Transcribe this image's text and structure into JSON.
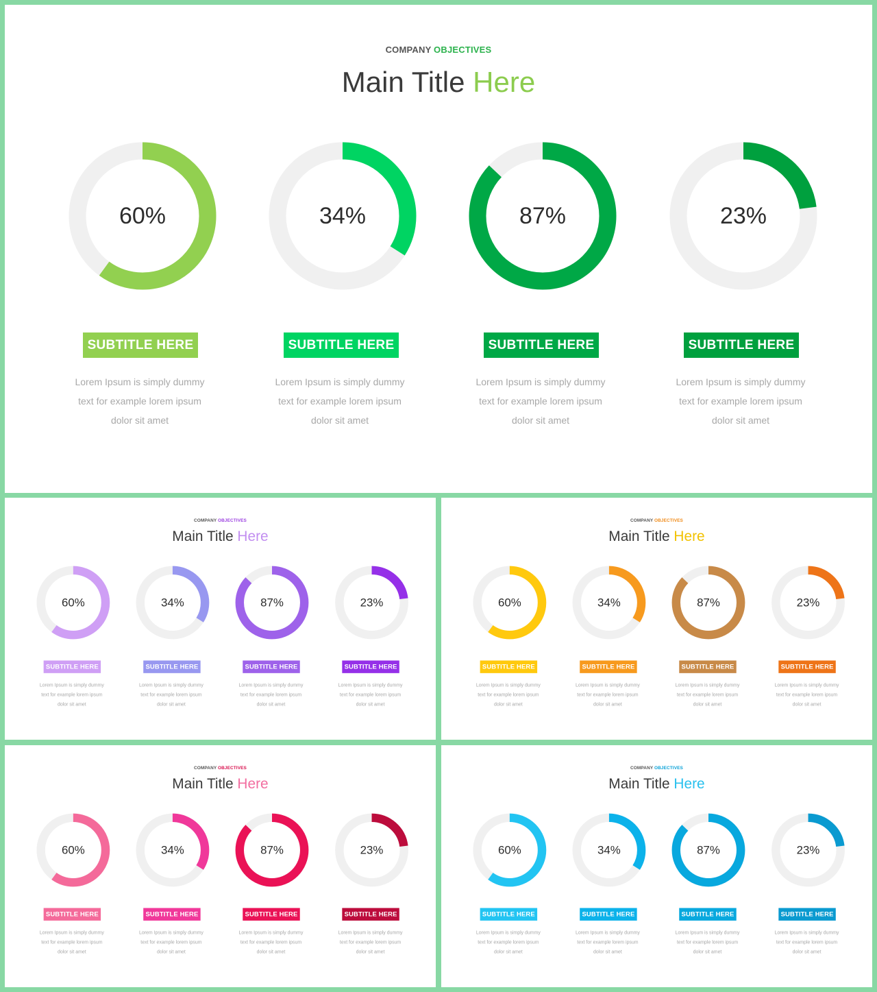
{
  "colors": {
    "background": "#88d8a4",
    "track": "#f0f0f0",
    "title_dark": "#3a3a3a",
    "kicker_dark": "#555555",
    "description": "#a8a8a8"
  },
  "slides": [
    {
      "kicker_main": "COMPANY",
      "kicker_accent": "OBJECTIVES",
      "kicker_accent_color": "#2bb24c",
      "title_main": "Main Title",
      "title_accent": "Here",
      "title_accent_color": "#8ccc4e",
      "items": [
        {
          "value": 60,
          "label": "60%",
          "subtitle": "SUBTITLE HERE",
          "color": "#92d050",
          "description_lines": [
            "Lorem Ipsum is simply dummy",
            "text for example lorem ipsum",
            "dolor sit amet"
          ]
        },
        {
          "value": 34,
          "label": "34%",
          "subtitle": "SUBTITLE HERE",
          "color": "#00d462",
          "description_lines": [
            "Lorem Ipsum is simply dummy",
            "text for example lorem ipsum",
            "dolor sit amet"
          ]
        },
        {
          "value": 87,
          "label": "87%",
          "subtitle": "SUBTITLE HERE",
          "color": "#00a846",
          "description_lines": [
            "Lorem Ipsum is simply dummy",
            "text for example lorem ipsum",
            "dolor sit amet"
          ]
        },
        {
          "value": 23,
          "label": "23%",
          "subtitle": "SUBTITLE HERE",
          "color": "#00a03e",
          "description_lines": [
            "Lorem Ipsum is simply dummy",
            "text for example lorem ipsum",
            "dolor sit amet"
          ]
        }
      ]
    },
    {
      "kicker_main": "COMPANY",
      "kicker_accent": "OBJECTIVES",
      "kicker_accent_color": "#9b3fe0",
      "title_main": "Main Title",
      "title_accent": "Here",
      "title_accent_color": "#c28ef0",
      "items": [
        {
          "value": 60,
          "label": "60%",
          "subtitle": "SUBTITLE HERE",
          "color": "#cf9ff5",
          "description_lines": [
            "Lorem Ipsum is simply dummy",
            "text for example lorem ipsum",
            "dolor sit amet"
          ]
        },
        {
          "value": 34,
          "label": "34%",
          "subtitle": "SUBTITLE HERE",
          "color": "#9898f0",
          "description_lines": [
            "Lorem Ipsum is simply dummy",
            "text for example lorem ipsum",
            "dolor sit amet"
          ]
        },
        {
          "value": 87,
          "label": "87%",
          "subtitle": "SUBTITLE HERE",
          "color": "#9e62ea",
          "description_lines": [
            "Lorem Ipsum is simply dummy",
            "text for example lorem ipsum",
            "dolor sit amet"
          ]
        },
        {
          "value": 23,
          "label": "23%",
          "subtitle": "SUBTITLE HERE",
          "color": "#9530e8",
          "description_lines": [
            "Lorem Ipsum is simply dummy",
            "text for example lorem ipsum",
            "dolor sit amet"
          ]
        }
      ]
    },
    {
      "kicker_main": "COMPANY",
      "kicker_accent": "OBJECTIVES",
      "kicker_accent_color": "#f08a18",
      "title_main": "Main Title",
      "title_accent": "Here",
      "title_accent_color": "#f2c200",
      "items": [
        {
          "value": 60,
          "label": "60%",
          "subtitle": "SUBTITLE HERE",
          "color": "#ffc90e",
          "description_lines": [
            "Lorem Ipsum is simply dummy",
            "text for example lorem ipsum",
            "dolor sit amet"
          ]
        },
        {
          "value": 34,
          "label": "34%",
          "subtitle": "SUBTITLE HERE",
          "color": "#f79a1e",
          "description_lines": [
            "Lorem Ipsum is simply dummy",
            "text for example lorem ipsum",
            "dolor sit amet"
          ]
        },
        {
          "value": 87,
          "label": "87%",
          "subtitle": "SUBTITLE HERE",
          "color": "#c88a48",
          "description_lines": [
            "Lorem Ipsum is simply dummy",
            "text for example lorem ipsum",
            "dolor sit amet"
          ]
        },
        {
          "value": 23,
          "label": "23%",
          "subtitle": "SUBTITLE HERE",
          "color": "#ee7418",
          "description_lines": [
            "Lorem Ipsum is simply dummy",
            "text for example lorem ipsum",
            "dolor sit amet"
          ]
        }
      ]
    },
    {
      "kicker_main": "COMPANY",
      "kicker_accent": "OBJECTIVES",
      "kicker_accent_color": "#d8114e",
      "title_main": "Main Title",
      "title_accent": "Here",
      "title_accent_color": "#f26ea0",
      "items": [
        {
          "value": 60,
          "label": "60%",
          "subtitle": "SUBTITLE HERE",
          "color": "#f46a9a",
          "description_lines": [
            "Lorem Ipsum is simply dummy",
            "text for example lorem ipsum",
            "dolor sit amet"
          ]
        },
        {
          "value": 34,
          "label": "34%",
          "subtitle": "SUBTITLE HERE",
          "color": "#f0389a",
          "description_lines": [
            "Lorem Ipsum is simply dummy",
            "text for example lorem ipsum",
            "dolor sit amet"
          ]
        },
        {
          "value": 87,
          "label": "87%",
          "subtitle": "SUBTITLE HERE",
          "color": "#ea1256",
          "description_lines": [
            "Lorem Ipsum is simply dummy",
            "text for example lorem ipsum",
            "dolor sit amet"
          ]
        },
        {
          "value": 23,
          "label": "23%",
          "subtitle": "SUBTITLE HERE",
          "color": "#bc0c3c",
          "description_lines": [
            "Lorem Ipsum is simply dummy",
            "text for example lorem ipsum",
            "dolor sit amet"
          ]
        }
      ]
    },
    {
      "kicker_main": "COMPANY",
      "kicker_accent": "OBJECTIVES",
      "kicker_accent_color": "#0aa2d8",
      "title_main": "Main Title",
      "title_accent": "Here",
      "title_accent_color": "#28c0ee",
      "items": [
        {
          "value": 60,
          "label": "60%",
          "subtitle": "SUBTITLE HERE",
          "color": "#22c4f2",
          "description_lines": [
            "Lorem Ipsum is simply dummy",
            "text for example lorem ipsum",
            "dolor sit amet"
          ]
        },
        {
          "value": 34,
          "label": "34%",
          "subtitle": "SUBTITLE HERE",
          "color": "#0cb2ea",
          "description_lines": [
            "Lorem Ipsum is simply dummy",
            "text for example lorem ipsum",
            "dolor sit amet"
          ]
        },
        {
          "value": 87,
          "label": "87%",
          "subtitle": "SUBTITLE HERE",
          "color": "#08a8de",
          "description_lines": [
            "Lorem Ipsum is simply dummy",
            "text for example lorem ipsum",
            "dolor sit amet"
          ]
        },
        {
          "value": 23,
          "label": "23%",
          "subtitle": "SUBTITLE HERE",
          "color": "#0a9ad0",
          "description_lines": [
            "Lorem Ipsum is simply dummy",
            "text for example lorem ipsum",
            "dolor sit amet"
          ]
        }
      ]
    }
  ]
}
